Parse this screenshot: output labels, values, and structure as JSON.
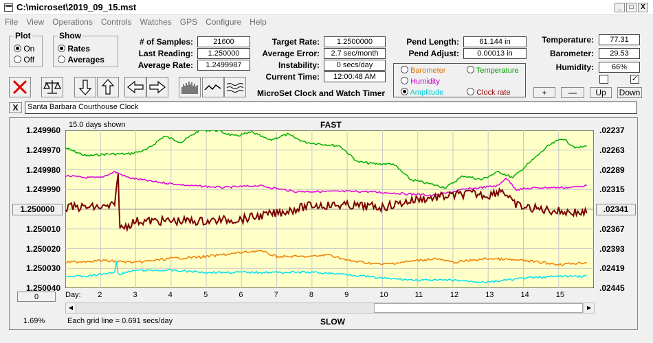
{
  "window": {
    "title": "C:\\microset\\2019_09_15.mst",
    "minimize": "_",
    "maximize": "□",
    "close": "X"
  },
  "menu": [
    "File",
    "View",
    "Operations",
    "Controls",
    "Watches",
    "GPS",
    "Configure",
    "Help"
  ],
  "plot_group": {
    "title": "Plot",
    "options": [
      "On",
      "Off"
    ],
    "selected": "On"
  },
  "show_group": {
    "title": "Show",
    "options": [
      "Rates",
      "Averages"
    ],
    "selected": "Rates"
  },
  "stats": [
    {
      "label": "# of Samples:",
      "value": "21600"
    },
    {
      "label": "Last Reading:",
      "value": "1.250000"
    },
    {
      "label": "Average Rate:",
      "value": "1.2499987"
    }
  ],
  "rates": [
    {
      "label": "Target Rate:",
      "value": "1.2500000"
    },
    {
      "label": "Average Error:",
      "value": "2.7 sec/month"
    },
    {
      "label": "Instability:",
      "value": "0 secs/day"
    },
    {
      "label": "Current Time:",
      "value": "12:00:48 AM"
    }
  ],
  "app_caption": "MicroSet Clock and Watch Timer",
  "pend": [
    {
      "label": "Pend Length:",
      "value": "61.144 in"
    },
    {
      "label": "Pend Adjust:",
      "value": "0.00013 in"
    }
  ],
  "env": [
    {
      "label": "Temperature:",
      "value": "77.31"
    },
    {
      "label": "Barometer:",
      "value": "29.53"
    },
    {
      "label": "Humidity:",
      "value": "66%"
    }
  ],
  "trace_select": {
    "options": [
      {
        "label": "Barometer",
        "color": "#e07000",
        "selected": false
      },
      {
        "label": "Temperature",
        "color": "#00a000",
        "selected": false
      },
      {
        "label": "Humidity",
        "color": "#d000d0",
        "selected": false
      },
      {
        "label": "Amplitude",
        "color": "#00c8d8",
        "selected": true
      },
      {
        "label": "Clock rate",
        "color": "#8b0000",
        "selected": false
      }
    ]
  },
  "checkbox2_mark": "✓",
  "adjust_buttons": [
    "+",
    "—",
    "Up",
    "Down"
  ],
  "x_button": "X",
  "clock_name": "Santa Barbara Courthouse Clock",
  "chart": {
    "days_shown": "15.0 days shown",
    "top_label": "FAST",
    "bottom_label": "SLOW",
    "left_ticks": [
      "1.249960",
      "1.249970",
      "1.249980",
      "1.249990",
      "1.250000",
      "1.250010",
      "1.250020",
      "1.250030",
      "1.250040"
    ],
    "right_ticks": [
      ".02237",
      ".02263",
      ".02289",
      ".02315",
      ".02341",
      ".02367",
      ".02393",
      ".02419",
      ".02445"
    ],
    "day_label": "Day:",
    "days": [
      "2",
      "3",
      "4",
      "5",
      "6",
      "7",
      "8",
      "9",
      "10",
      "11",
      "12",
      "13",
      "14",
      "15"
    ],
    "grid_note": "Each grid line = 0.691 secs/day",
    "percent": "1.69%",
    "zero_button": "0"
  },
  "chart_data": {
    "type": "line",
    "x_range": [
      1,
      16
    ],
    "ylim": [
      1.24996,
      1.25004
    ],
    "series": [
      {
        "color": "#00b000",
        "points": [
          [
            1,
            1.249969
          ],
          [
            1.6,
            1.249973
          ],
          [
            2.2,
            1.249972
          ],
          [
            2.8,
            1.249972
          ],
          [
            3.3,
            1.24997
          ],
          [
            3.8,
            1.249963
          ],
          [
            4.3,
            1.249966
          ],
          [
            4.8,
            1.24996
          ],
          [
            5.3,
            1.24996
          ],
          [
            5.8,
            1.249963
          ],
          [
            6.3,
            1.249961
          ],
          [
            6.8,
            1.249965
          ],
          [
            7.3,
            1.249962
          ],
          [
            7.8,
            1.249966
          ],
          [
            8.3,
            1.249967
          ],
          [
            8.8,
            1.249968
          ],
          [
            9.3,
            1.249976
          ],
          [
            9.8,
            1.249977
          ],
          [
            10.3,
            1.249977
          ],
          [
            10.8,
            1.249985
          ],
          [
            11.3,
            1.249987
          ],
          [
            11.8,
            1.249989
          ],
          [
            12.3,
            1.249983
          ],
          [
            12.8,
            1.249985
          ],
          [
            13.3,
            1.249981
          ],
          [
            13.7,
            1.249984
          ],
          [
            14.2,
            1.249976
          ],
          [
            14.7,
            1.249968
          ],
          [
            15.1,
            1.249964
          ],
          [
            15.5,
            1.249969
          ],
          [
            15.8,
            1.249968
          ]
        ]
      },
      {
        "color": "#e000e0",
        "points": [
          [
            1,
            1.249983
          ],
          [
            1.6,
            1.249984
          ],
          [
            2.0,
            1.249984
          ],
          [
            2.4,
            1.249981
          ],
          [
            2.8,
            1.249984
          ],
          [
            3.5,
            1.249986
          ],
          [
            4.5,
            1.249988
          ],
          [
            5.5,
            1.249989
          ],
          [
            6.5,
            1.249988
          ],
          [
            7.5,
            1.249991
          ],
          [
            8.5,
            1.249991
          ],
          [
            9.5,
            1.249991
          ],
          [
            10.5,
            1.249992
          ],
          [
            11.5,
            1.249993
          ],
          [
            12.3,
            1.24999
          ],
          [
            12.8,
            1.249989
          ],
          [
            13.3,
            1.249988
          ],
          [
            13.5,
            1.249984
          ],
          [
            13.8,
            1.24999
          ],
          [
            14.5,
            1.249989
          ],
          [
            15.3,
            1.249989
          ],
          [
            15.8,
            1.249988
          ]
        ]
      },
      {
        "color": "#7a0000",
        "points": [
          [
            1,
            1.249999
          ],
          [
            1.6,
            1.249999
          ],
          [
            2.2,
            1.249999
          ],
          [
            2.4,
            1.249998
          ],
          [
            2.5,
            1.249982
          ],
          [
            2.55,
            1.25001
          ],
          [
            3.0,
            1.250006
          ],
          [
            4.0,
            1.250006
          ],
          [
            5.0,
            1.250006
          ],
          [
            6.0,
            1.250005
          ],
          [
            7.0,
            1.250002
          ],
          [
            8.0,
            1.249998
          ],
          [
            9.0,
            1.249998
          ],
          [
            10.0,
            1.249999
          ],
          [
            11.0,
            1.249995
          ],
          [
            12.0,
            1.249993
          ],
          [
            12.5,
            1.249992
          ],
          [
            13.0,
            1.249993
          ],
          [
            13.4,
            1.24999
          ],
          [
            13.7,
            1.249997
          ],
          [
            14.0,
            1.249999
          ],
          [
            14.5,
            1.25
          ],
          [
            15.0,
            1.250001
          ],
          [
            15.8,
            1.250002
          ]
        ]
      },
      {
        "color": "#f08000",
        "points": [
          [
            1,
            1.250027
          ],
          [
            2,
            1.250026
          ],
          [
            3,
            1.250027
          ],
          [
            4,
            1.250025
          ],
          [
            5,
            1.250024
          ],
          [
            6,
            1.250022
          ],
          [
            6.5,
            1.250021
          ],
          [
            7,
            1.250024
          ],
          [
            8,
            1.250024
          ],
          [
            8.5,
            1.250023
          ],
          [
            9,
            1.250026
          ],
          [
            10,
            1.250028
          ],
          [
            11,
            1.250026
          ],
          [
            11.5,
            1.250025
          ],
          [
            12,
            1.250027
          ],
          [
            13,
            1.250025
          ],
          [
            14,
            1.250026
          ],
          [
            15,
            1.250028
          ],
          [
            15.8,
            1.250027
          ]
        ]
      },
      {
        "color": "#00e0f0",
        "points": [
          [
            1,
            1.250034
          ],
          [
            1.6,
            1.250034
          ],
          [
            2.0,
            1.250033
          ],
          [
            2.4,
            1.250032
          ],
          [
            2.45,
            1.250026
          ],
          [
            2.5,
            1.250033
          ],
          [
            3,
            1.250031
          ],
          [
            4,
            1.250031
          ],
          [
            5,
            1.250032
          ],
          [
            6,
            1.250032
          ],
          [
            7,
            1.250032
          ],
          [
            8,
            1.250032
          ],
          [
            9,
            1.250033
          ],
          [
            10,
            1.250035
          ],
          [
            11,
            1.250036
          ],
          [
            12,
            1.250036
          ],
          [
            13,
            1.250037
          ],
          [
            14,
            1.250035
          ],
          [
            15,
            1.250034
          ],
          [
            15.8,
            1.250034
          ]
        ]
      }
    ]
  }
}
